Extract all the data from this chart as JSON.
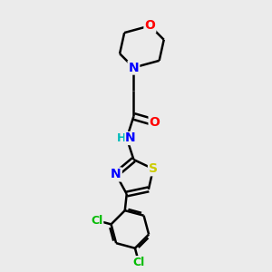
{
  "background_color": "#ebebeb",
  "bond_color": "#000000",
  "bond_width": 1.8,
  "dbo": 0.055,
  "atom_colors": {
    "O": "#ff0000",
    "N": "#0000ff",
    "S": "#cccc00",
    "Cl": "#00bb00",
    "C": "#000000",
    "H": "#00bbbb"
  },
  "font_size": 10,
  "fig_width": 3.0,
  "fig_height": 3.0,
  "dpi": 100
}
